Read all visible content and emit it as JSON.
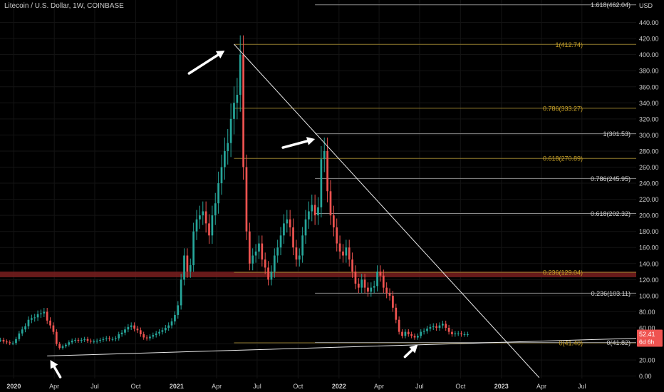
{
  "header": {
    "title": "Litecoin / U.S. Dollar, 1W, COINBASE"
  },
  "colors": {
    "background": "#000000",
    "up": "#26a69a",
    "down": "#ef5350",
    "fib_gold": "#8f7a2e",
    "fib_gray": "#8a8a8a",
    "label_gold": "#c9a227",
    "label_gray": "#d0d0d0",
    "trendline": "#e8e8e8",
    "zone": "#7a1e1e",
    "price_badge": "#ef5350",
    "axis_text": "#cfcfcf"
  },
  "chart_data": {
    "type": "candlestick",
    "title": "Litecoin / U.S. Dollar, 1W, COINBASE",
    "currency_label": "USD",
    "ylim": [
      -3,
      468
    ],
    "y_ticks": [
      0,
      20,
      40,
      60,
      80,
      100,
      120,
      140,
      160,
      180,
      200,
      220,
      240,
      260,
      280,
      300,
      320,
      340,
      360,
      380,
      400,
      420,
      440
    ],
    "y_tick_labels": [
      "0.00",
      "20.00",
      "40.00",
      "60.00",
      "80.00",
      "100.00",
      "120.00",
      "140.00",
      "160.00",
      "180.00",
      "200.00",
      "220.00",
      "240.00",
      "260.00",
      "280.00",
      "300.00",
      "320.00",
      "340.00",
      "360.00",
      "380.00",
      "400.00",
      "420.00",
      "440.00"
    ],
    "x_range": [
      "2019-12-01",
      "2023-10-31"
    ],
    "x_ticks": [
      {
        "date": "2020-01-01",
        "label": "2020",
        "bold": true
      },
      {
        "date": "2020-04-01",
        "label": "Apr",
        "bold": false
      },
      {
        "date": "2020-07-01",
        "label": "Jul",
        "bold": false
      },
      {
        "date": "2020-10-01",
        "label": "Oct",
        "bold": false
      },
      {
        "date": "2021-01-01",
        "label": "2021",
        "bold": true
      },
      {
        "date": "2021-04-01",
        "label": "Apr",
        "bold": false
      },
      {
        "date": "2021-07-01",
        "label": "Jul",
        "bold": false
      },
      {
        "date": "2021-10-01",
        "label": "Oct",
        "bold": false
      },
      {
        "date": "2022-01-01",
        "label": "2022",
        "bold": true
      },
      {
        "date": "2022-04-01",
        "label": "Apr",
        "bold": false
      },
      {
        "date": "2022-07-01",
        "label": "Jul",
        "bold": false
      },
      {
        "date": "2022-10-01",
        "label": "Oct",
        "bold": false
      },
      {
        "date": "2023-01-01",
        "label": "2023",
        "bold": true
      },
      {
        "date": "2023-04-01",
        "label": "Apr",
        "bold": false
      },
      {
        "date": "2023-07-01",
        "label": "Jul",
        "bold": false
      }
    ],
    "candles_start": "2019-12-02",
    "candle_interval_days": 7,
    "closes": [
      45,
      43,
      42,
      41,
      41,
      46,
      53,
      58,
      62,
      70,
      72,
      73,
      77,
      78,
      80,
      69,
      63,
      55,
      40,
      35,
      37,
      39,
      42,
      44,
      45,
      44,
      45,
      46,
      44,
      43,
      43,
      44,
      45,
      46,
      47,
      46,
      46,
      47,
      52,
      54,
      58,
      61,
      63,
      59,
      57,
      52,
      48,
      47,
      49,
      51,
      53,
      55,
      57,
      60,
      63,
      68,
      76,
      88,
      120,
      150,
      130,
      138,
      180,
      195,
      200,
      205,
      190,
      175,
      200,
      215,
      240,
      260,
      280,
      290,
      320,
      340,
      350,
      400,
      260,
      180,
      140,
      150,
      155,
      165,
      145,
      135,
      120,
      130,
      150,
      160,
      175,
      190,
      195,
      185,
      160,
      145,
      150,
      175,
      195,
      205,
      213,
      200,
      210,
      270,
      280,
      230,
      200,
      185,
      165,
      155,
      150,
      160,
      145,
      130,
      115,
      110,
      120,
      110,
      105,
      110,
      112,
      130,
      125,
      110,
      103,
      100,
      85,
      70,
      55,
      50,
      55,
      52,
      50,
      48,
      50,
      55,
      56,
      59,
      61,
      62,
      60,
      63,
      65,
      60,
      55,
      52,
      53,
      53,
      52,
      52,
      52
    ],
    "price_label": "52.41",
    "price_countdown": "6d 6h",
    "price_level": 52.41,
    "fib_left": [
      {
        "ratio": "1",
        "value": 412.74,
        "label": "1(412.74)",
        "color": "gold"
      },
      {
        "ratio": "0.786",
        "value": 333.27,
        "label": "0.786(333.27)",
        "color": "gold"
      },
      {
        "ratio": "0.618",
        "value": 270.89,
        "label": "0.618(270.89)",
        "color": "gold"
      },
      {
        "ratio": "0.236",
        "value": 129.04,
        "label": "0.236(129.04)",
        "color": "gold"
      },
      {
        "ratio": "0",
        "value": 41.4,
        "label": "0(41.40)",
        "color": "gold"
      }
    ],
    "fib_right": [
      {
        "ratio": "1.618",
        "value": 462.04,
        "label": "1.618(462.04)",
        "color": "gray"
      },
      {
        "ratio": "1",
        "value": 301.53,
        "label": "1(301.53)",
        "color": "gray"
      },
      {
        "ratio": "0.786",
        "value": 245.95,
        "label": "0.786(245.95)",
        "color": "gray"
      },
      {
        "ratio": "0.618",
        "value": 202.32,
        "label": "0.618(202.32)",
        "color": "gray"
      },
      {
        "ratio": "0.236",
        "value": 103.11,
        "label": "0.236(103.11)",
        "color": "gray"
      },
      {
        "ratio": "0",
        "value": 41.82,
        "label": "0(41.82)",
        "color": "gray"
      }
    ],
    "fib_left_start": "2021-05-10",
    "fib_right_start": "2021-11-08",
    "resistance_zone": [
      123,
      130
    ],
    "trendlines": [
      {
        "from": {
          "date": "2020-03-16",
          "value": 25
        },
        "to": {
          "date": "2023-10-31",
          "value": 47
        }
      },
      {
        "from": {
          "date": "2021-05-10",
          "value": 413
        },
        "to": {
          "date": "2023-03-27",
          "value": -2
        }
      }
    ],
    "arrows": [
      {
        "tip": {
          "date": "2021-04-19",
          "value": 405
        },
        "dir": "up-right"
      },
      {
        "tip": {
          "date": "2021-11-08",
          "value": 295
        },
        "dir": "right"
      },
      {
        "tip": {
          "date": "2020-03-23",
          "value": 20
        },
        "dir": "up-left"
      },
      {
        "tip": {
          "date": "2022-06-27",
          "value": 39
        },
        "dir": "up-left-from-right"
      }
    ]
  }
}
